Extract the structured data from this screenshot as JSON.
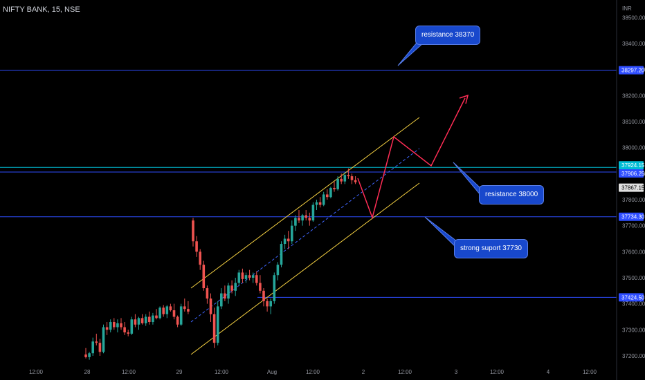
{
  "header": {
    "symbol_title": "NIFTY BANK, 15, NSE"
  },
  "chart_data": {
    "type": "candlestick",
    "symbol": "NIFTY BANK",
    "interval": "15",
    "exchange": "NSE",
    "currency": "INR",
    "y_ticks": [
      "38500.00",
      "38400.00",
      "38300.00",
      "38200.00",
      "38100.00",
      "38000.00",
      "37900.00",
      "37800.00",
      "37700.00",
      "37600.00",
      "37500.00",
      "37400.00",
      "37300.00",
      "37200.00"
    ],
    "ylim": [
      37170,
      38520
    ],
    "x_ticks": [
      "12:00",
      "28",
      "12:00",
      "29",
      "12:00",
      "Aug",
      "12:00",
      "2",
      "12:00",
      "3",
      "12:00",
      "4",
      "12:00"
    ],
    "grid": false,
    "candles": [
      [
        37205,
        37230,
        37190,
        37195
      ],
      [
        37195,
        37215,
        37185,
        37210
      ],
      [
        37210,
        37270,
        37200,
        37255
      ],
      [
        37255,
        37285,
        37240,
        37250
      ],
      [
        37250,
        37265,
        37200,
        37215
      ],
      [
        37215,
        37320,
        37210,
        37310
      ],
      [
        37310,
        37330,
        37280,
        37300
      ],
      [
        37300,
        37340,
        37290,
        37330
      ],
      [
        37330,
        37345,
        37300,
        37310
      ],
      [
        37310,
        37340,
        37290,
        37325
      ],
      [
        37325,
        37345,
        37300,
        37310
      ],
      [
        37310,
        37330,
        37280,
        37290
      ],
      [
        37290,
        37300,
        37275,
        37285
      ],
      [
        37285,
        37350,
        37280,
        37340
      ],
      [
        37340,
        37360,
        37310,
        37320
      ],
      [
        37320,
        37350,
        37300,
        37345
      ],
      [
        37345,
        37360,
        37320,
        37325
      ],
      [
        37325,
        37360,
        37315,
        37350
      ],
      [
        37350,
        37370,
        37320,
        37330
      ],
      [
        37330,
        37365,
        37320,
        37355
      ],
      [
        37355,
        37380,
        37340,
        37345
      ],
      [
        37345,
        37390,
        37340,
        37385
      ],
      [
        37385,
        37395,
        37350,
        37360
      ],
      [
        37360,
        37395,
        37345,
        37390
      ],
      [
        37390,
        37400,
        37370,
        37375
      ],
      [
        37375,
        37400,
        37340,
        37350
      ],
      [
        37350,
        37355,
        37310,
        37320
      ],
      [
        37320,
        37400,
        37315,
        37390
      ],
      [
        37390,
        37420,
        37370,
        37380
      ],
      [
        37380,
        37410,
        37360,
        37370
      ],
      [
        37720,
        37730,
        37620,
        37640
      ],
      [
        37640,
        37660,
        37580,
        37600
      ],
      [
        37600,
        37610,
        37530,
        37550
      ],
      [
        37550,
        37565,
        37450,
        37460
      ],
      [
        37460,
        37470,
        37400,
        37420
      ],
      [
        37420,
        37440,
        37330,
        37360
      ],
      [
        37360,
        37385,
        37230,
        37250
      ],
      [
        37250,
        37410,
        37240,
        37390
      ],
      [
        37390,
        37460,
        37380,
        37440
      ],
      [
        37440,
        37470,
        37410,
        37420
      ],
      [
        37420,
        37480,
        37400,
        37470
      ],
      [
        37470,
        37490,
        37440,
        37450
      ],
      [
        37450,
        37500,
        37430,
        37480
      ],
      [
        37480,
        37530,
        37470,
        37520
      ],
      [
        37520,
        37535,
        37480,
        37495
      ],
      [
        37495,
        37520,
        37480,
        37510
      ],
      [
        37510,
        37530,
        37490,
        37500
      ],
      [
        37500,
        37520,
        37480,
        37510
      ],
      [
        37510,
        37525,
        37470,
        37480
      ],
      [
        37480,
        37510,
        37440,
        37450
      ],
      [
        37450,
        37460,
        37390,
        37410
      ],
      [
        37410,
        37420,
        37370,
        37390
      ],
      [
        37390,
        37420,
        37360,
        37410
      ],
      [
        37410,
        37520,
        37400,
        37510
      ],
      [
        37510,
        37560,
        37490,
        37550
      ],
      [
        37550,
        37640,
        37540,
        37630
      ],
      [
        37630,
        37665,
        37610,
        37650
      ],
      [
        37650,
        37680,
        37610,
        37640
      ],
      [
        37640,
        37720,
        37630,
        37700
      ],
      [
        37700,
        37740,
        37680,
        37730
      ],
      [
        37730,
        37760,
        37710,
        37720
      ],
      [
        37720,
        37745,
        37700,
        37740
      ],
      [
        37740,
        37760,
        37720,
        37730
      ],
      [
        37730,
        37750,
        37700,
        37720
      ],
      [
        37720,
        37790,
        37715,
        37780
      ],
      [
        37780,
        37800,
        37760,
        37790
      ],
      [
        37790,
        37810,
        37770,
        37780
      ],
      [
        37780,
        37830,
        37775,
        37820
      ],
      [
        37820,
        37840,
        37800,
        37810
      ],
      [
        37810,
        37850,
        37805,
        37845
      ],
      [
        37845,
        37870,
        37830,
        37840
      ],
      [
        37840,
        37890,
        37835,
        37880
      ],
      [
        37880,
        37900,
        37860,
        37870
      ],
      [
        37870,
        37905,
        37860,
        37895
      ],
      [
        37895,
        37920,
        37880,
        37890
      ],
      [
        37890,
        37900,
        37860,
        37875
      ],
      [
        37875,
        37890,
        37860,
        37867
      ]
    ],
    "horizontal_levels": [
      {
        "value": 38297.2,
        "label": "38297.20",
        "color": "#2e4dff"
      },
      {
        "value": 37924.15,
        "label": "37924.15",
        "color": "#00bcd4"
      },
      {
        "value": 37906.25,
        "label": "37906.25",
        "color": "#2e4dff"
      },
      {
        "value": 37867.15,
        "label": "37867.15",
        "color": "#e0e0e0"
      },
      {
        "value": 37734.3,
        "label": "37734.30",
        "color": "#2e4dff"
      },
      {
        "value": 37424.5,
        "label": "37424.50",
        "color": "#2e4dff"
      }
    ],
    "annotations": [
      "resistance 38370",
      "resistance 38000",
      "strong suport 37730"
    ],
    "colors": {
      "up": "#26a69a",
      "down": "#ef5350",
      "channel": "#f5d142",
      "level": "#2e4dff",
      "projection": "#ff2d55",
      "background": "#000000"
    }
  }
}
